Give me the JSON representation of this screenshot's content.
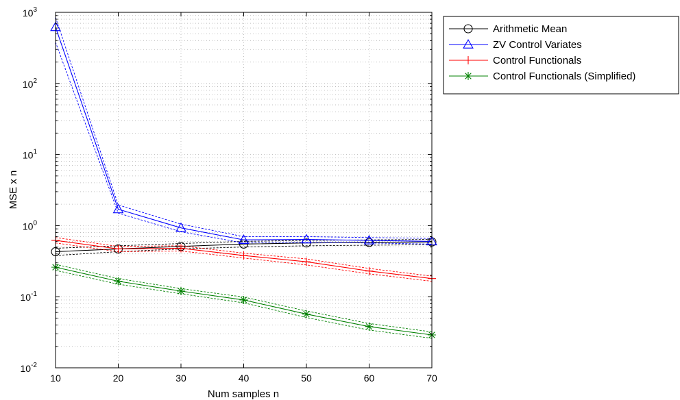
{
  "chart_data": {
    "type": "line",
    "title": "",
    "xlabel": "Num samples n",
    "ylabel": "MSE x n",
    "xscale": "linear",
    "yscale": "log",
    "xlim": [
      10,
      70
    ],
    "ylim": [
      0.01,
      1000
    ],
    "x": [
      10,
      20,
      30,
      40,
      50,
      60,
      70
    ],
    "x_tick_labels": [
      "10",
      "20",
      "30",
      "40",
      "50",
      "60",
      "70"
    ],
    "y_tick_labels": [
      {
        "base": "10",
        "exp": "-2",
        "value": 0.01
      },
      {
        "base": "10",
        "exp": "-1",
        "value": 0.1
      },
      {
        "base": "10",
        "exp": "0",
        "value": 1
      },
      {
        "base": "10",
        "exp": "1",
        "value": 10
      },
      {
        "base": "10",
        "exp": "2",
        "value": 100
      },
      {
        "base": "10",
        "exp": "3",
        "value": 1000
      }
    ],
    "grid": true,
    "legend_position": "outside-right-top",
    "series": [
      {
        "name": "Arithmetic Mean",
        "color": "#000000",
        "marker": "circle",
        "values": [
          0.43,
          0.47,
          0.51,
          0.55,
          0.57,
          0.58,
          0.59
        ],
        "lower": [
          0.38,
          0.43,
          0.47,
          0.5,
          0.52,
          0.53,
          0.54
        ],
        "upper": [
          0.48,
          0.52,
          0.56,
          0.6,
          0.62,
          0.63,
          0.64
        ]
      },
      {
        "name": "ZV Control Variates",
        "color": "#0000ff",
        "marker": "triangle",
        "values": [
          620,
          1.7,
          0.93,
          0.63,
          0.64,
          0.62,
          0.6
        ],
        "lower": [
          380,
          1.5,
          0.82,
          0.57,
          0.58,
          0.57,
          0.55
        ],
        "upper": [
          850,
          1.95,
          1.05,
          0.7,
          0.7,
          0.68,
          0.66
        ]
      },
      {
        "name": "Control Functionals",
        "color": "#ff0000",
        "marker": "plus",
        "values": [
          0.62,
          0.47,
          0.48,
          0.38,
          0.31,
          0.23,
          0.18
        ],
        "lower": [
          0.57,
          0.43,
          0.44,
          0.35,
          0.28,
          0.21,
          0.165
        ],
        "upper": [
          0.68,
          0.51,
          0.52,
          0.41,
          0.34,
          0.25,
          0.195
        ]
      },
      {
        "name": "Control Functionals (Simplified)",
        "color": "#008000",
        "marker": "asterisk",
        "values": [
          0.26,
          0.165,
          0.12,
          0.09,
          0.057,
          0.038,
          0.029
        ],
        "lower": [
          0.235,
          0.15,
          0.11,
          0.082,
          0.051,
          0.034,
          0.026
        ],
        "upper": [
          0.285,
          0.18,
          0.13,
          0.099,
          0.063,
          0.042,
          0.032
        ]
      }
    ]
  }
}
